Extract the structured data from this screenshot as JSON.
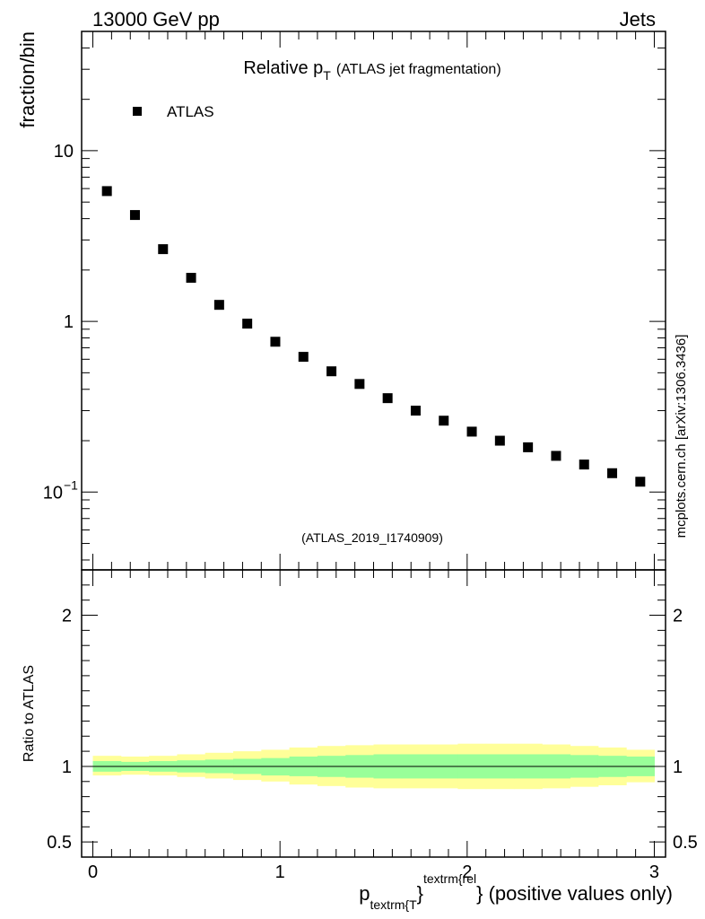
{
  "header": {
    "left": "13000 GeV pp",
    "right": "Jets"
  },
  "watermark": "mcplots.cern.ch [arXiv:1306.3436]",
  "colors": {
    "band_inner": "#99ff99",
    "band_outer": "#ffff99",
    "marker": "#000000",
    "analysis_label": "#999999"
  },
  "chart_data": [
    {
      "type": "scatter",
      "title_main": "Relative p",
      "title_sub": "T",
      "title_suffix": "(ATLAS jet fragmentation)",
      "ylabel": "fraction/bin",
      "yscale": "log",
      "ylim": [
        0.035,
        50
      ],
      "xlim": [
        -0.06,
        3.06
      ],
      "yticks": [
        {
          "value": 10,
          "label": "10"
        },
        {
          "value": 1,
          "label": "1"
        },
        {
          "value": 0.1,
          "base": "10",
          "exp": "−1"
        }
      ],
      "legend": [
        {
          "name": "ATLAS",
          "position": "top-left"
        }
      ],
      "analysis_label": "(ATLAS_2019_I1740909)",
      "series": [
        {
          "name": "ATLAS",
          "x": [
            0.075,
            0.225,
            0.375,
            0.525,
            0.675,
            0.825,
            0.975,
            1.125,
            1.275,
            1.425,
            1.575,
            1.725,
            1.875,
            2.025,
            2.175,
            2.325,
            2.475,
            2.625,
            2.775,
            2.925
          ],
          "y": [
            5.8,
            4.2,
            2.65,
            1.8,
            1.25,
            0.97,
            0.76,
            0.62,
            0.51,
            0.43,
            0.355,
            0.3,
            0.262,
            0.226,
            0.2,
            0.183,
            0.163,
            0.145,
            0.129,
            0.115
          ]
        }
      ]
    },
    {
      "type": "area",
      "ylabel": "Ratio to ATLAS",
      "ylim": [
        0.4,
        2.3
      ],
      "xlim": [
        -0.06,
        3.06
      ],
      "yticks": [
        {
          "value": 2,
          "label": "2"
        },
        {
          "value": 1,
          "label": "1"
        },
        {
          "value": 0.5,
          "label": "0.5"
        }
      ],
      "xticks": [
        {
          "value": 0,
          "label": "0"
        },
        {
          "value": 1,
          "label": "1"
        },
        {
          "value": 2,
          "label": "2"
        },
        {
          "value": 3,
          "label": "3"
        }
      ],
      "xlabel": {
        "p": "p",
        "sub": "textrm{T",
        "brace": "}",
        "sup": "textrm{rel",
        "suffix": "} (positive values only)"
      },
      "bins": [
        0,
        0.15,
        0.3,
        0.45,
        0.6,
        0.75,
        0.9,
        1.05,
        1.2,
        1.35,
        1.5,
        1.65,
        1.8,
        1.95,
        2.1,
        2.25,
        2.4,
        2.55,
        2.7,
        2.85,
        3.0
      ],
      "inner_band": {
        "lo": [
          0.965,
          0.97,
          0.965,
          0.96,
          0.955,
          0.95,
          0.94,
          0.935,
          0.93,
          0.925,
          0.92,
          0.92,
          0.92,
          0.92,
          0.92,
          0.92,
          0.92,
          0.925,
          0.93,
          0.935
        ],
        "hi": [
          1.035,
          1.03,
          1.035,
          1.04,
          1.045,
          1.05,
          1.055,
          1.065,
          1.07,
          1.075,
          1.08,
          1.08,
          1.08,
          1.08,
          1.08,
          1.08,
          1.08,
          1.075,
          1.07,
          1.065
        ]
      },
      "outer_band": {
        "lo": [
          0.94,
          0.945,
          0.94,
          0.93,
          0.92,
          0.91,
          0.9,
          0.88,
          0.87,
          0.86,
          0.855,
          0.855,
          0.855,
          0.85,
          0.85,
          0.85,
          0.855,
          0.865,
          0.875,
          0.895
        ],
        "hi": [
          1.07,
          1.065,
          1.07,
          1.08,
          1.09,
          1.1,
          1.11,
          1.125,
          1.135,
          1.14,
          1.145,
          1.145,
          1.145,
          1.15,
          1.15,
          1.15,
          1.145,
          1.135,
          1.125,
          1.11
        ]
      },
      "reference_line": 1
    }
  ]
}
